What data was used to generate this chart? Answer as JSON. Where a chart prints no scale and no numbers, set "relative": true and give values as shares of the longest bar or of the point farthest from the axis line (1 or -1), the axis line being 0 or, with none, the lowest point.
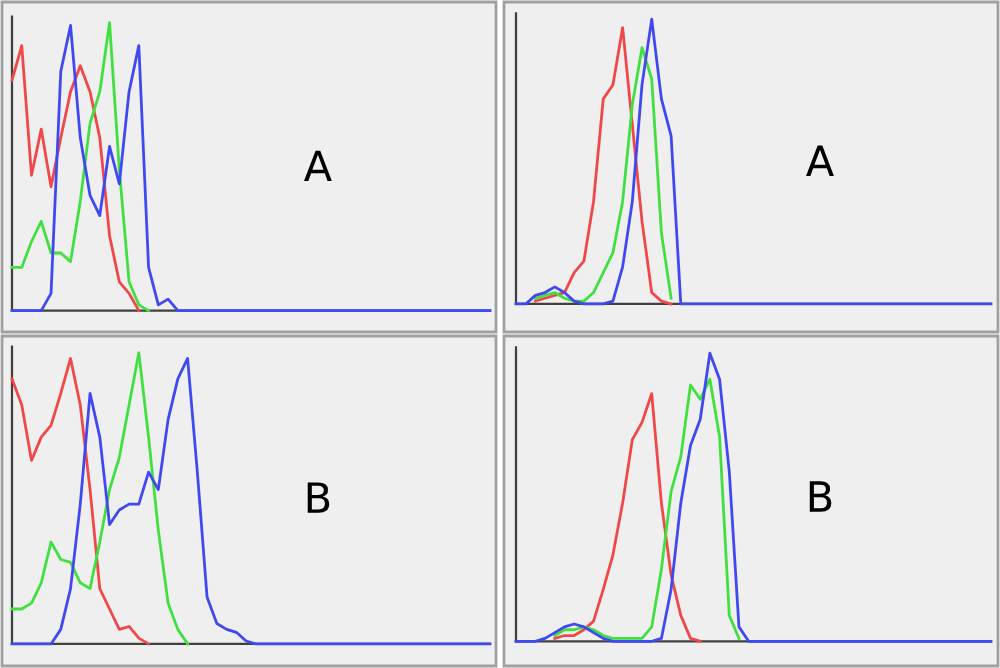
{
  "chart_data": [
    {
      "type": "line",
      "relative": true,
      "categories": [
        null,
        null,
        null,
        null,
        null,
        null,
        null,
        null,
        null,
        null,
        null,
        null,
        null,
        null,
        null,
        null,
        null,
        null,
        null,
        null,
        null,
        null,
        null,
        null,
        null,
        null,
        null,
        null,
        null,
        null,
        null,
        null,
        null,
        null,
        null,
        null,
        null,
        null,
        null,
        null,
        null,
        null,
        null,
        null,
        null,
        null,
        null,
        null,
        null,
        null
      ],
      "annotations": [
        "A"
      ],
      "series": [
        {
          "color": "#f04848",
          "values": [
            0.8,
            0.92,
            0.47,
            0.63,
            0.43,
            0.6,
            0.76,
            0.85,
            0.76,
            0.6,
            0.26,
            0.1,
            0.06,
            0,
            null,
            null,
            null,
            null,
            null,
            null,
            null,
            null,
            null,
            null,
            null,
            null,
            null,
            null,
            null,
            null,
            null,
            null,
            null,
            null,
            null,
            null,
            null,
            null,
            null,
            null,
            null,
            null,
            null,
            null,
            null,
            null,
            null,
            null,
            null,
            null
          ]
        },
        {
          "color": "#40e040",
          "values": [
            0.15,
            0.15,
            0.24,
            0.31,
            0.2,
            0.2,
            0.17,
            0.38,
            0.65,
            0.76,
            1,
            0.49,
            0.1,
            0.02,
            0,
            null,
            null,
            null,
            null,
            null,
            null,
            null,
            null,
            null,
            null,
            null,
            null,
            null,
            null,
            null,
            null,
            null,
            null,
            null,
            null,
            null,
            null,
            null,
            null,
            null,
            null,
            null,
            null,
            null,
            null,
            null,
            null,
            null,
            null,
            null
          ]
        },
        {
          "color": "#4048f0",
          "values": [
            0,
            0,
            0,
            0,
            0.06,
            0.83,
            0.99,
            0.6,
            0.4,
            0.33,
            0.57,
            0.44,
            0.76,
            0.92,
            0.15,
            0.02,
            0.04,
            0,
            0,
            0,
            0,
            0,
            0,
            0,
            0,
            0,
            0,
            0,
            0,
            0,
            0,
            0,
            0,
            0,
            0,
            0,
            0,
            0,
            0,
            0,
            0,
            0,
            0,
            0,
            0,
            0,
            0,
            0,
            0,
            0
          ]
        }
      ]
    },
    {
      "type": "line",
      "relative": true,
      "categories": [
        null,
        null,
        null,
        null,
        null,
        null,
        null,
        null,
        null,
        null,
        null,
        null,
        null,
        null,
        null,
        null,
        null,
        null,
        null,
        null,
        null,
        null,
        null,
        null,
        null,
        null,
        null,
        null,
        null,
        null,
        null,
        null,
        null,
        null,
        null,
        null,
        null,
        null,
        null,
        null,
        null,
        null,
        null,
        null,
        null,
        null,
        null,
        null,
        null,
        null
      ],
      "annotations": [
        "A"
      ],
      "series": [
        {
          "color": "#f04848",
          "values": [
            null,
            null,
            0.01,
            0.02,
            0.03,
            0.04,
            0.11,
            0.15,
            0.36,
            0.72,
            0.77,
            0.97,
            0.63,
            0.29,
            0.04,
            0.01,
            0,
            null,
            null,
            null,
            null,
            null,
            null,
            null,
            null,
            null,
            null,
            null,
            null,
            null,
            null,
            null,
            null,
            null,
            null,
            null,
            null,
            null,
            null,
            null,
            null,
            null,
            null,
            null,
            null,
            null,
            null,
            null,
            null,
            null
          ]
        },
        {
          "color": "#40e040",
          "values": [
            null,
            null,
            0.02,
            0.03,
            0.04,
            0.02,
            0.01,
            0.01,
            0.04,
            0.11,
            0.18,
            0.36,
            0.7,
            0.9,
            0.79,
            0.25,
            0.02,
            null,
            null,
            null,
            null,
            null,
            null,
            null,
            null,
            null,
            null,
            null,
            null,
            null,
            null,
            null,
            null,
            null,
            null,
            null,
            null,
            null,
            null,
            null,
            null,
            null,
            null,
            null,
            null,
            null,
            null,
            null,
            null,
            null
          ]
        },
        {
          "color": "#4048f0",
          "values": [
            0,
            0,
            0.03,
            0.04,
            0.06,
            0.04,
            0.01,
            0,
            0,
            0,
            0.01,
            0.13,
            0.36,
            0.77,
            1,
            0.72,
            0.59,
            0,
            0,
            0,
            0,
            0,
            0,
            0,
            0,
            0,
            0,
            0,
            0,
            0,
            0,
            0,
            0,
            0,
            0,
            0,
            0,
            0,
            0,
            0,
            0,
            0,
            0,
            0,
            0,
            0,
            0,
            0,
            0,
            0
          ]
        }
      ]
    },
    {
      "type": "line",
      "relative": true,
      "categories": [
        null,
        null,
        null,
        null,
        null,
        null,
        null,
        null,
        null,
        null,
        null,
        null,
        null,
        null,
        null,
        null,
        null,
        null,
        null,
        null,
        null,
        null,
        null,
        null,
        null,
        null,
        null,
        null,
        null,
        null,
        null,
        null,
        null,
        null,
        null,
        null,
        null,
        null,
        null,
        null,
        null,
        null,
        null,
        null,
        null,
        null,
        null,
        null,
        null,
        null
      ],
      "annotations": [
        "B"
      ],
      "series": [
        {
          "color": "#f04848",
          "values": [
            0.91,
            0.82,
            0.63,
            0.71,
            0.75,
            0.86,
            0.98,
            0.82,
            0.53,
            0.19,
            0.12,
            0.05,
            0.06,
            0.02,
            0,
            null,
            null,
            null,
            null,
            null,
            null,
            null,
            null,
            null,
            null,
            null,
            null,
            null,
            null,
            null,
            null,
            null,
            null,
            null,
            null,
            null,
            null,
            null,
            null,
            null,
            null,
            null,
            null,
            null,
            null,
            null,
            null,
            null,
            null,
            null
          ]
        },
        {
          "color": "#40e040",
          "values": [
            0.12,
            0.12,
            0.14,
            0.21,
            0.35,
            0.29,
            0.28,
            0.21,
            0.19,
            0.35,
            0.53,
            0.64,
            0.82,
            1,
            0.71,
            0.39,
            0.14,
            0.05,
            0,
            null,
            null,
            null,
            null,
            null,
            null,
            null,
            null,
            null,
            null,
            null,
            null,
            null,
            null,
            null,
            null,
            null,
            null,
            null,
            null,
            null,
            null,
            null,
            null,
            null,
            null,
            null,
            null,
            null,
            null,
            null
          ]
        },
        {
          "color": "#4048f0",
          "values": [
            0,
            0,
            0,
            0,
            0,
            0.05,
            0.19,
            0.48,
            0.86,
            0.71,
            0.41,
            0.46,
            0.48,
            0.48,
            0.59,
            0.53,
            0.77,
            0.91,
            0.98,
            0.59,
            0.16,
            0.07,
            0.05,
            0.04,
            0.01,
            0,
            0,
            0,
            0,
            0,
            0,
            0,
            0,
            0,
            0,
            0,
            0,
            0,
            0,
            0,
            0,
            0,
            0,
            0,
            0,
            0,
            0,
            0,
            0,
            0
          ]
        }
      ]
    },
    {
      "type": "line",
      "relative": true,
      "categories": [
        null,
        null,
        null,
        null,
        null,
        null,
        null,
        null,
        null,
        null,
        null,
        null,
        null,
        null,
        null,
        null,
        null,
        null,
        null,
        null,
        null,
        null,
        null,
        null,
        null,
        null,
        null,
        null,
        null,
        null,
        null,
        null,
        null,
        null,
        null,
        null,
        null,
        null,
        null,
        null,
        null,
        null,
        null,
        null,
        null,
        null,
        null,
        null,
        null,
        null
      ],
      "annotations": [
        "B"
      ],
      "series": [
        {
          "color": "#f04848",
          "values": [
            null,
            null,
            null,
            null,
            0.01,
            0.02,
            0.02,
            0.04,
            0.07,
            0.18,
            0.3,
            0.48,
            0.7,
            0.76,
            0.86,
            0.48,
            0.23,
            0.09,
            0.01,
            0,
            null,
            null,
            null,
            null,
            null,
            null,
            null,
            null,
            null,
            null,
            null,
            null,
            null,
            null,
            null,
            null,
            null,
            null,
            null,
            null,
            null,
            null,
            null,
            null,
            null,
            null,
            null,
            null,
            null,
            null
          ]
        },
        {
          "color": "#40e040",
          "values": [
            null,
            null,
            null,
            null,
            0.02,
            0.04,
            0.04,
            0.05,
            0.04,
            0.02,
            0.01,
            0.01,
            0.01,
            0.01,
            0.05,
            0.25,
            0.52,
            0.64,
            0.89,
            0.84,
            0.91,
            0.71,
            0.09,
            0.01,
            null,
            null,
            null,
            null,
            null,
            null,
            null,
            null,
            null,
            null,
            null,
            null,
            null,
            null,
            null,
            null,
            null,
            null,
            null,
            null,
            null,
            null,
            null,
            null,
            null,
            null
          ]
        },
        {
          "color": "#4048f0",
          "values": [
            0,
            0,
            0,
            0.01,
            0.03,
            0.05,
            0.06,
            0.05,
            0.03,
            0.01,
            0,
            0,
            0,
            0,
            0,
            0.01,
            0.18,
            0.48,
            0.68,
            0.77,
            1,
            0.91,
            0.59,
            0.05,
            0,
            0,
            0,
            0,
            0,
            0,
            0,
            0,
            0,
            0,
            0,
            0,
            0,
            0,
            0,
            0,
            0,
            0,
            0,
            0,
            0,
            0,
            0,
            0,
            0,
            0
          ]
        }
      ]
    }
  ]
}
